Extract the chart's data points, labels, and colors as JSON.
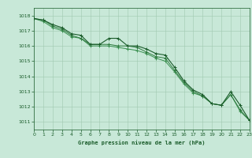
{
  "title": "Graphe pression niveau de la mer (hPa)",
  "bg_color": "#c8e8d8",
  "grid_color": "#a0c8b0",
  "line_color_dark": "#1a5c2a",
  "line_color_mid": "#2d7a3e",
  "line_color_light": "#3a9050",
  "x_min": 0,
  "x_max": 23,
  "y_min": 1010.5,
  "y_max": 1018.5,
  "y_ticks": [
    1011,
    1012,
    1013,
    1014,
    1015,
    1016,
    1017,
    1018
  ],
  "x_ticks": [
    0,
    1,
    2,
    3,
    4,
    5,
    6,
    7,
    8,
    9,
    10,
    11,
    12,
    13,
    14,
    15,
    16,
    17,
    18,
    19,
    20,
    21,
    22,
    23
  ],
  "series1": [
    1017.8,
    1017.7,
    1017.4,
    1017.2,
    1016.8,
    1016.7,
    1016.1,
    1016.1,
    1016.5,
    1016.5,
    1016.0,
    1016.0,
    1015.8,
    1015.5,
    1015.4,
    1014.6,
    1013.7,
    1013.1,
    1012.8,
    1012.2,
    1012.1,
    1013.0,
    1012.1,
    1011.1
  ],
  "series2": [
    1017.8,
    1017.7,
    1017.3,
    1017.1,
    1016.7,
    1016.5,
    1016.1,
    1016.1,
    1016.1,
    1016.0,
    1016.0,
    1015.9,
    1015.6,
    1015.3,
    1015.2,
    1014.4,
    1013.6,
    1013.0,
    1012.7,
    1012.2,
    1012.1,
    1012.8,
    1011.8,
    1011.1
  ],
  "series3": [
    1017.8,
    1017.6,
    1017.2,
    1017.0,
    1016.6,
    1016.5,
    1016.0,
    1016.0,
    1016.0,
    1015.9,
    1015.8,
    1015.7,
    1015.5,
    1015.2,
    1015.0,
    1014.3,
    1013.5,
    1012.9,
    1012.7,
    1012.2,
    1012.1,
    1012.8,
    1011.7,
    1011.1
  ]
}
